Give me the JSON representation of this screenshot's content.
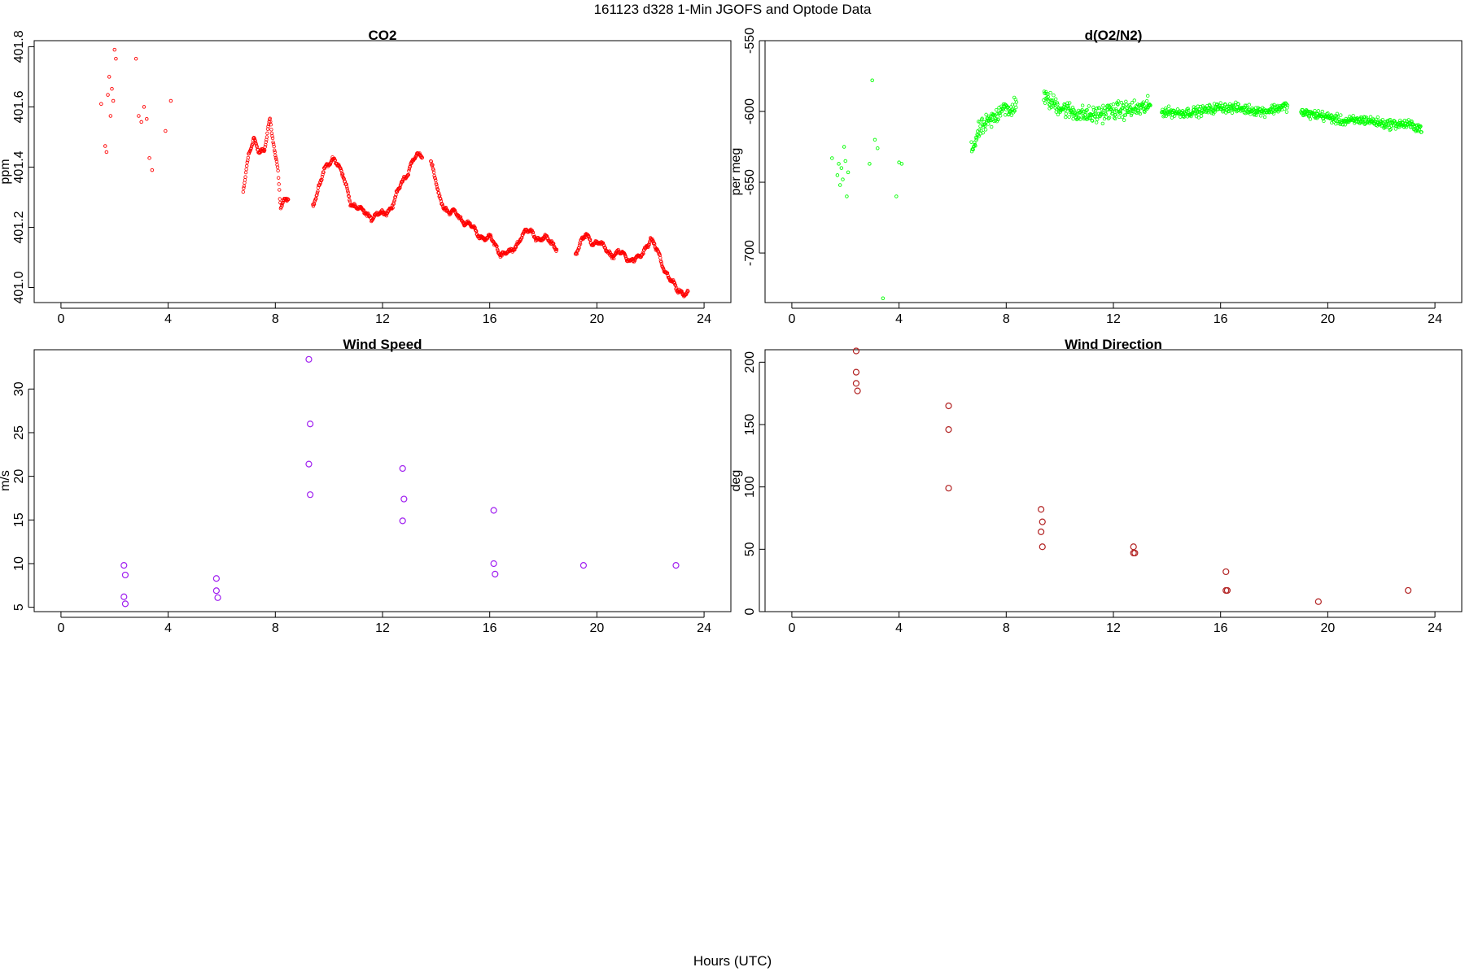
{
  "figure": {
    "title": "161123   d328   1-Min  JGOFS and Optode Data",
    "xlabel": "Hours (UTC)"
  },
  "chart_data": [
    {
      "type": "scatter",
      "title": "CO2",
      "xlabel": "",
      "ylabel": "ppm",
      "xlim": [
        -1,
        25
      ],
      "ylim": [
        400.95,
        401.82
      ],
      "xticks": [
        0,
        4,
        8,
        12,
        16,
        20,
        24
      ],
      "yticks": [
        401.0,
        401.2,
        401.4,
        401.6,
        401.8
      ],
      "ytick_labels": [
        "401.0",
        "401.2",
        "401.4",
        "401.6",
        "401.8"
      ],
      "marker_color": "#ff0000",
      "grid": false,
      "series": [
        {
          "x": [
            1.5,
            1.65,
            1.7,
            1.75,
            1.8,
            1.85,
            1.9,
            1.95,
            2.0,
            2.05,
            2.8,
            2.9,
            3.0,
            3.1,
            3.2,
            3.3,
            3.4,
            3.9,
            4.1
          ],
          "y": [
            401.61,
            401.47,
            401.45,
            401.64,
            401.7,
            401.57,
            401.66,
            401.62,
            401.79,
            401.76,
            401.76,
            401.57,
            401.55,
            401.6,
            401.56,
            401.43,
            401.39,
            401.52,
            401.62
          ]
        }
      ],
      "generated_segments": [
        {
          "x_start": 6.8,
          "x_end": 8.5,
          "anchors_x": [
            6.8,
            7.0,
            7.2,
            7.4,
            7.6,
            7.8,
            8.0,
            8.1,
            8.2,
            8.35,
            8.5
          ],
          "anchors_y": [
            401.33,
            401.43,
            401.49,
            401.46,
            401.46,
            401.55,
            401.44,
            401.4,
            401.27,
            401.29,
            401.28
          ]
        },
        {
          "x_start": 9.4,
          "x_end": 13.5,
          "anchors_x": [
            9.4,
            9.8,
            10.2,
            10.5,
            10.8,
            11.2,
            11.6,
            12.0,
            12.4,
            12.8,
            13.1,
            13.5
          ],
          "anchors_y": [
            401.28,
            401.38,
            401.44,
            401.37,
            401.29,
            401.25,
            401.24,
            401.24,
            401.28,
            401.36,
            401.42,
            401.44
          ]
        },
        {
          "x_start": 13.8,
          "x_end": 18.5,
          "anchors_x": [
            13.8,
            14.1,
            14.5,
            15.0,
            15.5,
            16.0,
            16.4,
            16.8,
            17.2,
            17.6,
            18.0,
            18.5
          ],
          "anchors_y": [
            401.42,
            401.3,
            401.25,
            401.23,
            401.18,
            401.16,
            401.12,
            401.11,
            401.18,
            401.18,
            401.16,
            401.14
          ]
        },
        {
          "x_start": 19.2,
          "x_end": 23.4,
          "anchors_x": [
            19.2,
            19.6,
            20.0,
            20.4,
            20.8,
            21.2,
            21.6,
            22.0,
            22.4,
            22.7,
            23.0,
            23.4
          ],
          "anchors_y": [
            401.12,
            401.17,
            401.15,
            401.12,
            401.11,
            401.1,
            401.09,
            401.17,
            401.08,
            401.04,
            400.98,
            400.99
          ]
        }
      ]
    },
    {
      "type": "scatter",
      "title": "d(O2/N2)",
      "xlabel": "",
      "ylabel": "per meg",
      "xlim": [
        -1,
        25
      ],
      "ylim": [
        -735,
        -550
      ],
      "xticks": [
        0,
        4,
        8,
        12,
        16,
        20,
        24
      ],
      "yticks": [
        -550,
        -600,
        -650,
        -700
      ],
      "ytick_labels": [
        "-550",
        "-600",
        "-650",
        "-700"
      ],
      "marker_color": "#00ff00",
      "grid": false,
      "series": [
        {
          "x": [
            1.5,
            1.7,
            1.75,
            1.8,
            1.85,
            1.9,
            1.95,
            2.0,
            2.05,
            2.1,
            2.9,
            3.0,
            3.1,
            3.2,
            3.4,
            3.9,
            4.0,
            4.1
          ],
          "y": [
            -633,
            -645,
            -637,
            -652,
            -640,
            -648,
            -625,
            -635,
            -660,
            -643,
            -637,
            -578,
            -620,
            -626,
            -732,
            -660,
            -636,
            -637
          ]
        }
      ],
      "generated_segments": [
        {
          "x_start": 6.7,
          "x_end": 8.4,
          "anchors_x": [
            6.7,
            7.0,
            7.3,
            7.6,
            7.9,
            8.1,
            8.4
          ],
          "anchors_y": [
            -628,
            -613,
            -608,
            -604,
            -595,
            -602,
            -592
          ],
          "spread": 9
        },
        {
          "x_start": 9.4,
          "x_end": 13.4,
          "anchors_x": [
            9.4,
            10.0,
            10.6,
            11.2,
            11.8,
            12.4,
            13.0,
            13.4
          ],
          "anchors_y": [
            -590,
            -597,
            -601,
            -603,
            -600,
            -599,
            -598,
            -596
          ],
          "spread": 9
        },
        {
          "x_start": 13.8,
          "x_end": 18.5,
          "anchors_x": [
            13.8,
            14.5,
            15.2,
            16.0,
            16.8,
            17.6,
            18.5
          ],
          "anchors_y": [
            -600,
            -601,
            -600,
            -597,
            -598,
            -600,
            -596
          ],
          "spread": 5
        },
        {
          "x_start": 19.0,
          "x_end": 23.5,
          "anchors_x": [
            19.0,
            19.8,
            20.6,
            21.4,
            22.2,
            23.0,
            23.5
          ],
          "anchors_y": [
            -601,
            -603,
            -607,
            -606,
            -609,
            -609,
            -612
          ],
          "spread": 5
        }
      ]
    },
    {
      "type": "scatter",
      "title": "Wind Speed",
      "xlabel": "",
      "ylabel": "m/s",
      "xlim": [
        -1,
        25
      ],
      "ylim": [
        4.5,
        34.5
      ],
      "xticks": [
        0,
        4,
        8,
        12,
        16,
        20,
        24
      ],
      "yticks": [
        5,
        10,
        15,
        20,
        25,
        30
      ],
      "ytick_labels": [
        "5",
        "10",
        "15",
        "20",
        "25",
        "30"
      ],
      "marker_color": "#a020f0",
      "grid": false,
      "series": [
        {
          "x": [
            2.35,
            2.4,
            2.35,
            2.4,
            5.8,
            5.8,
            5.85,
            9.25,
            9.3,
            9.25,
            9.3,
            12.75,
            12.8,
            12.75,
            16.15,
            16.15,
            16.2,
            19.5,
            22.95
          ],
          "y": [
            9.8,
            8.7,
            6.2,
            5.4,
            8.3,
            6.9,
            6.1,
            33.4,
            26.0,
            21.4,
            17.9,
            20.9,
            17.4,
            14.9,
            16.1,
            10.0,
            8.8,
            9.8,
            9.8
          ]
        }
      ]
    },
    {
      "type": "scatter",
      "title": "Wind Direction",
      "xlabel": "",
      "ylabel": "deg",
      "xlim": [
        -1,
        25
      ],
      "ylim": [
        0,
        210
      ],
      "xticks": [
        0,
        4,
        8,
        12,
        16,
        20,
        24
      ],
      "yticks": [
        0,
        50,
        100,
        150,
        200
      ],
      "ytick_labels": [
        "0",
        "50",
        "100",
        "150",
        "200"
      ],
      "marker_color": "#b22222",
      "grid": false,
      "series": [
        {
          "x": [
            2.4,
            2.4,
            2.4,
            2.45,
            5.85,
            5.85,
            5.85,
            9.3,
            9.35,
            9.3,
            9.35,
            12.75,
            12.75,
            12.8,
            16.2,
            16.2,
            16.25,
            19.65,
            23.0
          ],
          "y": [
            209,
            192,
            183,
            177,
            165,
            146,
            99,
            82,
            72,
            64,
            52,
            52,
            47,
            47,
            32,
            17,
            17,
            8,
            17
          ]
        }
      ]
    }
  ]
}
